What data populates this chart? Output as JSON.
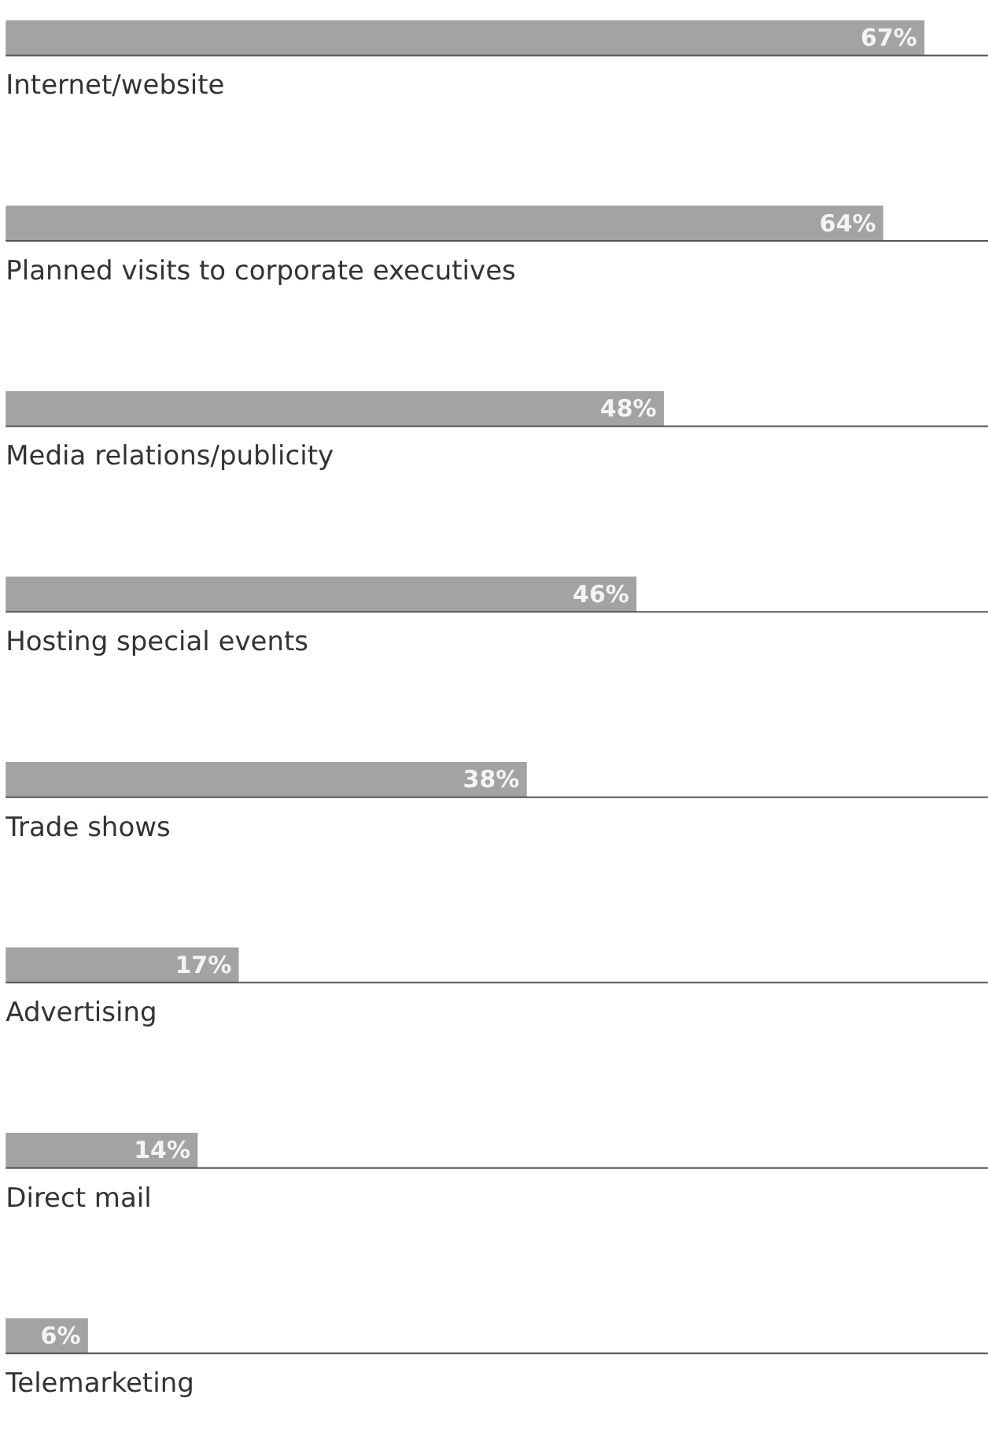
{
  "chart_data": {
    "type": "bar",
    "orientation": "horizontal",
    "categories": [
      "Internet/website",
      "Planned visits to corporate executives",
      "Media relations/publicity",
      "Hosting special events",
      "Trade shows",
      "Advertising",
      "Direct mail",
      "Telemarketing"
    ],
    "values": [
      67,
      64,
      48,
      46,
      38,
      17,
      14,
      6
    ],
    "color": "#a3a3a3",
    "data_labels": true,
    "value_labels": [
      "67%",
      "64%",
      "48%",
      "46%",
      "38%",
      "17%",
      "14%",
      "6%"
    ]
  }
}
